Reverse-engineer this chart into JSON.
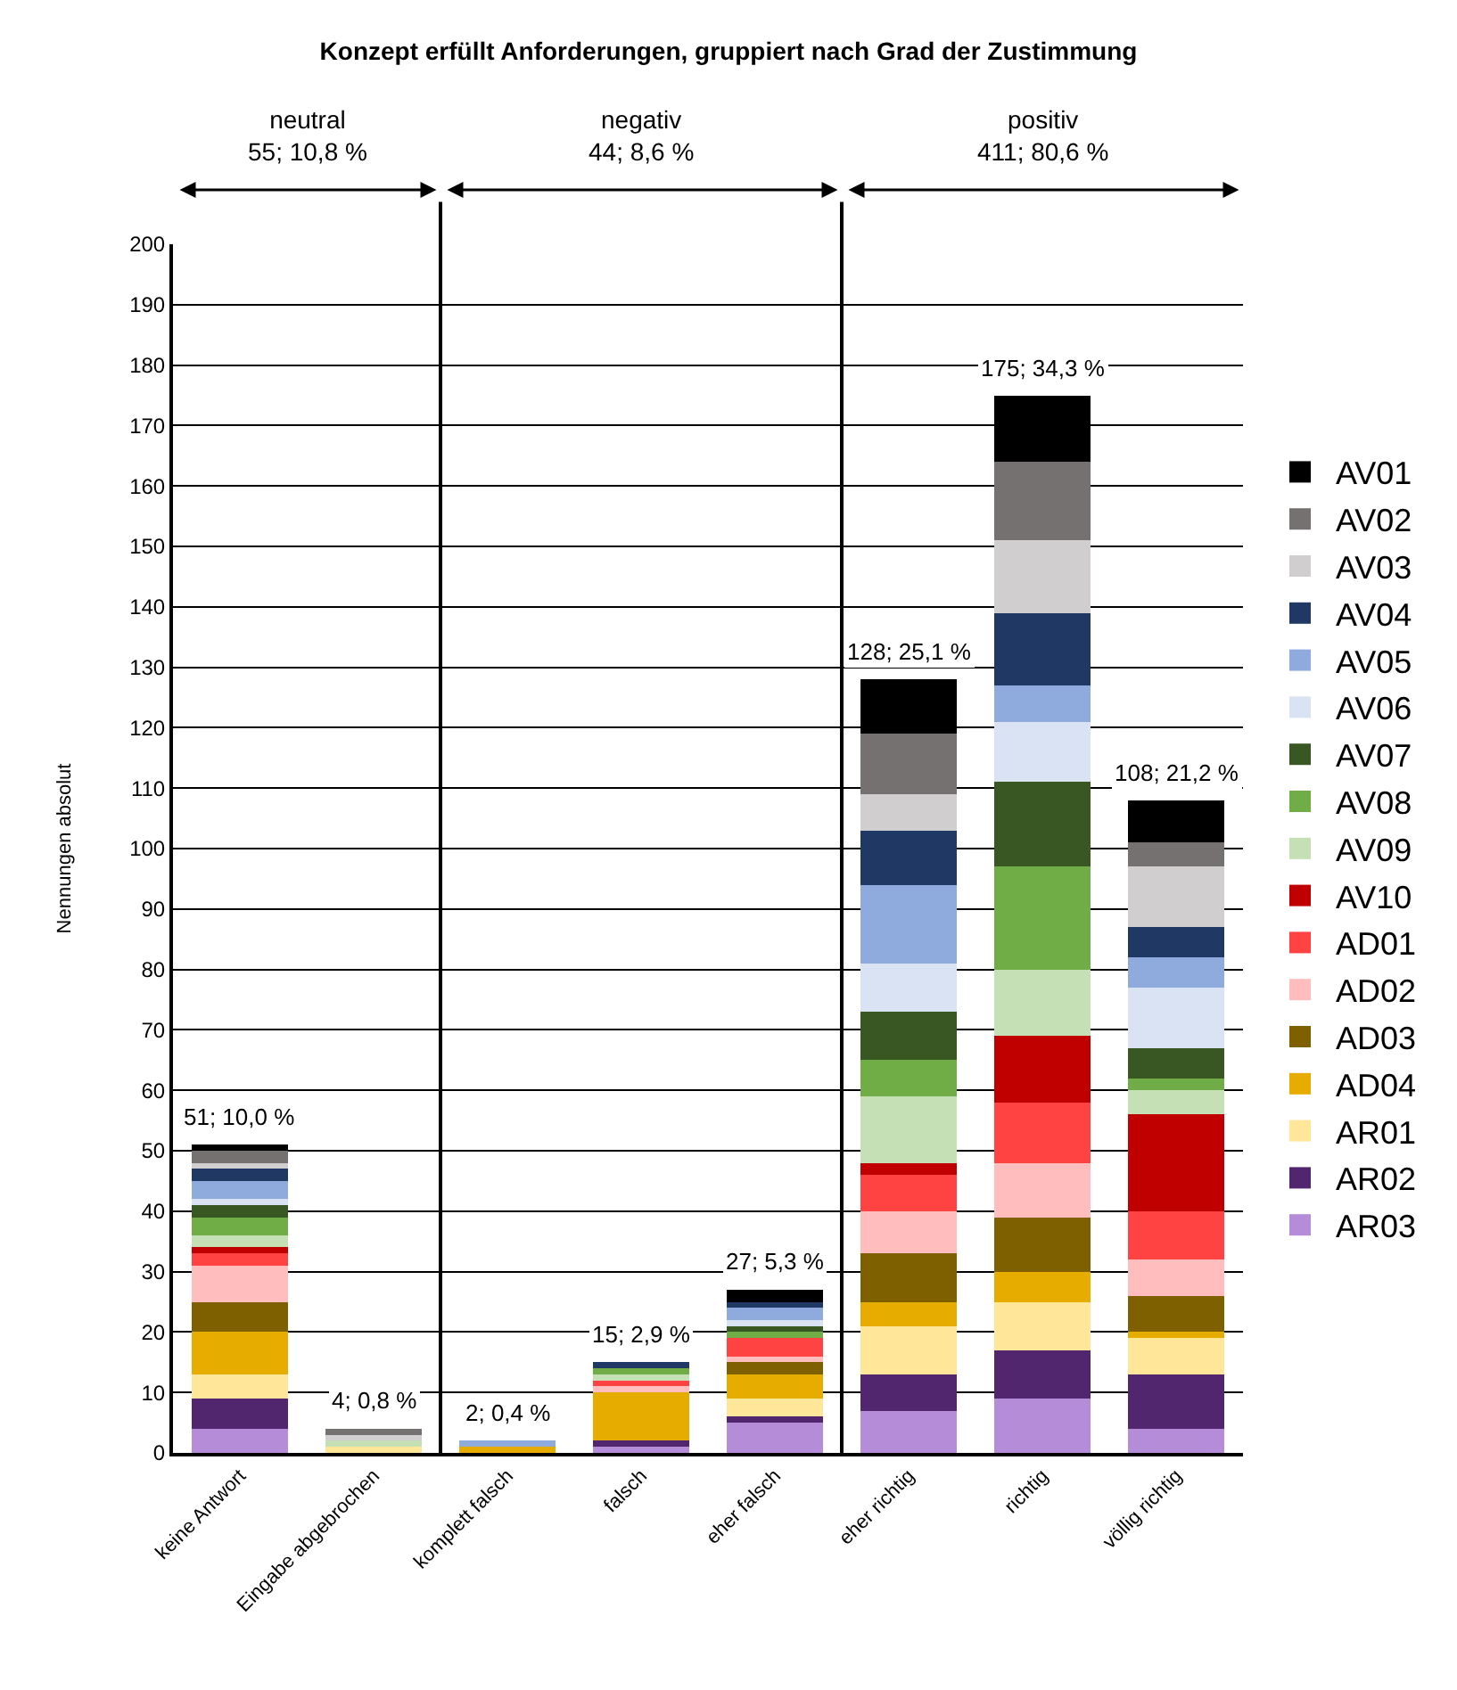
{
  "chart_data": {
    "type": "bar",
    "stacked": true,
    "title": "Konzept erfüllt Anforderungen, gruppiert nach Grad der Zustimmung",
    "ylabel": "Nennungen absolut",
    "categories": [
      "keine Antwort",
      "Eingabe abgebrochen",
      "komplett falsch",
      "falsch",
      "eher falsch",
      "eher richtig",
      "richtig",
      "völlig richtig"
    ],
    "series": [
      {
        "name": "AR03",
        "color": "#b48cd8",
        "values": [
          4,
          0,
          0,
          1,
          5,
          7,
          9,
          4
        ]
      },
      {
        "name": "AR02",
        "color": "#52266f",
        "values": [
          5,
          0,
          0,
          1,
          1,
          6,
          8,
          9
        ]
      },
      {
        "name": "AR01",
        "color": "#ffe699",
        "values": [
          4,
          1,
          0,
          0,
          3,
          8,
          8,
          6
        ]
      },
      {
        "name": "AD04",
        "color": "#e6ac00",
        "values": [
          7,
          0,
          1,
          8,
          4,
          4,
          5,
          1
        ]
      },
      {
        "name": "AD03",
        "color": "#7f6000",
        "values": [
          5,
          0,
          0,
          0,
          2,
          8,
          9,
          6
        ]
      },
      {
        "name": "AD02",
        "color": "#ffbdbd",
        "values": [
          6,
          0,
          0,
          1,
          1,
          7,
          9,
          6
        ]
      },
      {
        "name": "AD01",
        "color": "#ff4343",
        "values": [
          2,
          0,
          0,
          1,
          3,
          6,
          10,
          8
        ]
      },
      {
        "name": "AV10",
        "color": "#c00000",
        "values": [
          1,
          0,
          0,
          0,
          0,
          2,
          11,
          16
        ]
      },
      {
        "name": "AV09",
        "color": "#c5e0b4",
        "values": [
          2,
          1,
          0,
          1,
          0,
          11,
          11,
          4
        ]
      },
      {
        "name": "AV08",
        "color": "#70ad47",
        "values": [
          3,
          0,
          0,
          1,
          1,
          6,
          17,
          2
        ]
      },
      {
        "name": "AV07",
        "color": "#385723",
        "values": [
          2,
          0,
          0,
          0,
          1,
          8,
          14,
          5
        ]
      },
      {
        "name": "AV06",
        "color": "#dae3f3",
        "values": [
          1,
          0,
          0,
          0,
          1,
          8,
          10,
          10
        ]
      },
      {
        "name": "AV05",
        "color": "#8faadc",
        "values": [
          3,
          0,
          1,
          0,
          2,
          13,
          6,
          5
        ]
      },
      {
        "name": "AV04",
        "color": "#203864",
        "values": [
          2,
          0,
          0,
          1,
          1,
          9,
          12,
          5
        ]
      },
      {
        "name": "AV03",
        "color": "#d0cece",
        "values": [
          1,
          1,
          0,
          0,
          0,
          6,
          12,
          10
        ]
      },
      {
        "name": "AV02",
        "color": "#767171",
        "values": [
          2,
          1,
          0,
          0,
          0,
          10,
          13,
          4
        ]
      },
      {
        "name": "AV01",
        "color": "#000000",
        "values": [
          1,
          0,
          0,
          0,
          2,
          9,
          11,
          7
        ]
      }
    ],
    "totals": [
      "51; 10,0 %",
      "4; 0,8 %",
      "2; 0,4 %",
      "15; 2,9 %",
      "27; 5,3 %",
      "128; 25,1 %",
      "175; 34,3 %",
      "108; 21,2 %"
    ],
    "annotations": [
      "neutral",
      "55; 10,8 %",
      "negativ",
      "44; 8,6 %",
      "positiv",
      "411; 80,6 %"
    ],
    "ylim": [
      0,
      200
    ],
    "yticks": [
      0,
      10,
      20,
      30,
      40,
      50,
      60,
      70,
      80,
      90,
      100,
      110,
      120,
      130,
      140,
      150,
      160,
      170,
      180,
      190,
      200
    ],
    "grid": "y",
    "legend": "right"
  }
}
